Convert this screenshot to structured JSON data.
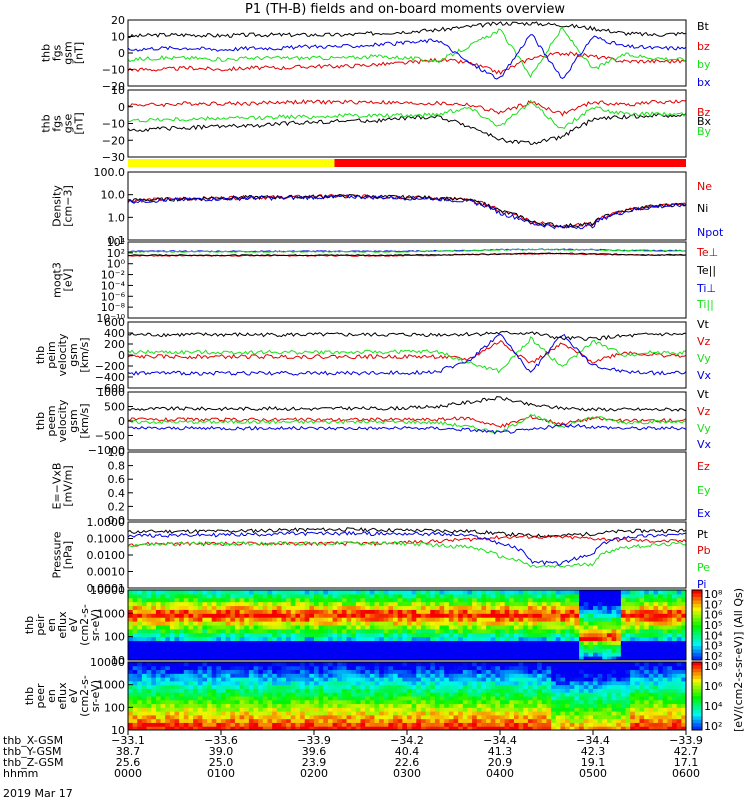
{
  "title": "P1 (TH-B) fields and on-board moments overview",
  "date_label": "2019 Mar 17",
  "colors": {
    "black": "#000000",
    "red": "#e00000",
    "green": "#19e019",
    "blue": "#0000e0"
  },
  "chart_data": [
    {
      "type": "line",
      "id": "fgs_gsm",
      "ylabel": [
        "thb",
        "fgs",
        "gsm",
        "[nT]"
      ],
      "ylim": [
        -20,
        20
      ],
      "yticks": [
        "20",
        "10",
        "0",
        "−10",
        "−20"
      ],
      "series": [
        {
          "name": "Bt",
          "color": "black",
          "values": [
            10,
            11,
            11,
            10.5,
            11,
            11,
            11,
            11,
            12,
            13,
            14,
            16,
            18,
            18,
            17,
            15,
            12,
            11,
            12
          ]
        },
        {
          "name": "bz",
          "color": "red",
          "values": [
            -10,
            -10,
            -9,
            -10,
            -9,
            -9,
            -8,
            -8,
            -7,
            -6,
            -4,
            -6,
            -12,
            -3,
            0,
            -2,
            -5,
            -5,
            -5
          ]
        },
        {
          "name": "by",
          "color": "green",
          "values": [
            -4,
            -3,
            -3,
            -4,
            -3,
            -3,
            -3,
            -3,
            -2,
            -3,
            -5,
            4,
            14,
            -14,
            15,
            -10,
            -1,
            -3,
            -4
          ]
        },
        {
          "name": "bx",
          "color": "blue",
          "values": [
            2,
            3,
            3,
            2,
            3,
            3,
            4,
            4,
            5,
            6,
            8,
            -6,
            -16,
            12,
            -16,
            10,
            4,
            3,
            3
          ]
        }
      ]
    },
    {
      "type": "line",
      "id": "fgs_gse",
      "ylabel": [
        "thb",
        "fgs",
        "gse",
        "[nT]"
      ],
      "ylim": [
        -35,
        15
      ],
      "yticks": [
        "10",
        "0",
        "−10",
        "−20",
        "−30"
      ],
      "series": [
        {
          "name": "Bz",
          "color": "red",
          "values": [
            4,
            4,
            5,
            5,
            5,
            6,
            6,
            6,
            6,
            5,
            5,
            4,
            -2,
            6,
            -3,
            6,
            4,
            6,
            6
          ]
        },
        {
          "name": "Bx",
          "color": "black",
          "values": [
            -15,
            -14,
            -13,
            -12,
            -12,
            -10,
            -9,
            -8,
            -8,
            -6,
            -5,
            -12,
            -22,
            -25,
            -20,
            -7,
            -5,
            -4,
            -4
          ]
        },
        {
          "name": "By",
          "color": "green",
          "values": [
            -8,
            -7,
            -7,
            -6,
            -6,
            -5,
            -5,
            -4,
            -4,
            -4,
            -3,
            2,
            -12,
            6,
            -14,
            2,
            -3,
            -3,
            -3
          ]
        }
      ]
    },
    {
      "type": "bar",
      "id": "mode_bar",
      "segments": [
        {
          "from": 0,
          "to": 0.37,
          "color": "yellow"
        },
        {
          "from": 0.37,
          "to": 1,
          "color": "red"
        }
      ]
    },
    {
      "type": "line",
      "id": "density",
      "scale": "log",
      "ylabel": [
        "Density",
        "[cm−3]"
      ],
      "ylim": [
        0.05,
        300
      ],
      "yticks": [
        "100.0",
        "10.0",
        "1.0",
        "0.1"
      ],
      "series": [
        {
          "name": "Ne",
          "color": "red",
          "values": [
            8,
            9,
            10,
            11,
            12,
            12,
            13,
            14,
            13,
            12,
            11,
            8,
            2,
            0.5,
            0.3,
            0.4,
            2,
            4,
            5
          ]
        },
        {
          "name": "Ni",
          "color": "black",
          "values": [
            8,
            9,
            10,
            11,
            12,
            12,
            13,
            14,
            13,
            12,
            11,
            8,
            2,
            0.5,
            0.3,
            0.4,
            2,
            4,
            5
          ]
        },
        {
          "name": "Npot",
          "color": "blue",
          "values": [
            7,
            8,
            9,
            10,
            11,
            11,
            12,
            13,
            12,
            11,
            10,
            7,
            1.5,
            0.4,
            0.25,
            0.3,
            1.8,
            3.5,
            4.5
          ]
        }
      ]
    },
    {
      "type": "line",
      "id": "temperature",
      "scale": "log",
      "ylabel": [
        "moqt3",
        "[eV]"
      ],
      "ylim": [
        1e-10,
        100000.0
      ],
      "yticks": [
        "10⁴",
        "10²",
        "10⁰",
        "10⁻²",
        "10⁻⁴",
        "10⁻⁶",
        "10⁻⁸",
        "10⁻¹⁰"
      ],
      "series": [
        {
          "name": "Te⊥",
          "color": "red",
          "values": [
            200,
            200,
            210,
            200,
            200,
            210,
            200,
            210,
            200,
            220,
            250,
            300,
            400,
            500,
            500,
            400,
            300,
            250,
            250
          ]
        },
        {
          "name": "Te||",
          "color": "black",
          "values": [
            250,
            260,
            260,
            250,
            250,
            260,
            260,
            260,
            250,
            270,
            300,
            350,
            450,
            550,
            550,
            450,
            350,
            300,
            300
          ]
        },
        {
          "name": "Ti⊥",
          "color": "blue",
          "values": [
            1500,
            1500,
            1500,
            1500,
            1500,
            1500,
            1500,
            1500,
            1500,
            1500,
            1800,
            2200,
            3000,
            3500,
            3500,
            3000,
            2200,
            2000,
            2000
          ]
        },
        {
          "name": "Ti||",
          "color": "green",
          "values": [
            1200,
            1200,
            1200,
            1200,
            1200,
            1200,
            1200,
            1200,
            1200,
            1300,
            1500,
            2000,
            2800,
            3200,
            3200,
            2800,
            2000,
            1800,
            1800
          ]
        }
      ]
    },
    {
      "type": "line",
      "id": "peim_velocity",
      "ylabel": [
        "thb",
        "peim",
        "velocity",
        "gsm",
        "[km/s]"
      ],
      "ylim": [
        -600,
        600
      ],
      "yticks": [
        "600",
        "400",
        "200",
        "0",
        "−200",
        "−400",
        "−600"
      ],
      "series": [
        {
          "name": "Vt",
          "color": "black",
          "values": [
            370,
            370,
            370,
            370,
            370,
            370,
            370,
            370,
            370,
            370,
            370,
            380,
            400,
            400,
            300,
            300,
            340,
            380,
            370
          ]
        },
        {
          "name": "Vz",
          "color": "red",
          "values": [
            -30,
            -30,
            -30,
            -30,
            -30,
            -30,
            -30,
            -30,
            -30,
            -30,
            -30,
            -80,
            250,
            -150,
            200,
            -120,
            50,
            0,
            -20
          ]
        },
        {
          "name": "Vy",
          "color": "green",
          "values": [
            50,
            50,
            50,
            50,
            50,
            50,
            50,
            50,
            50,
            60,
            60,
            -150,
            -300,
            300,
            -220,
            250,
            0,
            50,
            40
          ]
        },
        {
          "name": "Vx",
          "color": "blue",
          "values": [
            -330,
            -330,
            -330,
            -330,
            -330,
            -330,
            -330,
            -330,
            -330,
            -320,
            -300,
            -100,
            380,
            -330,
            380,
            -200,
            -300,
            -330,
            -320
          ]
        }
      ]
    },
    {
      "type": "line",
      "id": "peem_velocity",
      "ylabel": [
        "thb",
        "peem",
        "velocity",
        "gsm",
        "[km/s]"
      ],
      "ylim": [
        -1000,
        1000
      ],
      "yticks": [
        "1000",
        "500",
        "0",
        "−500",
        "−1000"
      ],
      "series": [
        {
          "name": "Vt",
          "color": "black",
          "values": [
            400,
            420,
            430,
            420,
            430,
            430,
            420,
            440,
            430,
            450,
            500,
            650,
            800,
            550,
            450,
            400,
            400,
            400,
            400
          ]
        },
        {
          "name": "Vz",
          "color": "red",
          "values": [
            50,
            40,
            50,
            40,
            50,
            50,
            40,
            50,
            50,
            50,
            50,
            100,
            -200,
            150,
            -100,
            100,
            0,
            20,
            30
          ]
        },
        {
          "name": "Vy",
          "color": "green",
          "values": [
            -30,
            -30,
            -30,
            -30,
            -30,
            -30,
            -30,
            -30,
            -30,
            -30,
            -50,
            -200,
            -400,
            200,
            -200,
            150,
            -50,
            -30,
            -30
          ]
        },
        {
          "name": "Vx",
          "color": "blue",
          "values": [
            -250,
            -250,
            -250,
            -250,
            -250,
            -250,
            -250,
            -250,
            -250,
            -250,
            -250,
            -300,
            -400,
            -300,
            -150,
            -200,
            -250,
            -250,
            -250
          ]
        }
      ]
    },
    {
      "type": "line",
      "id": "efield",
      "ylabel": [
        "E=−VxB",
        "[mV/m]"
      ],
      "ylim": [
        0,
        1
      ],
      "yticks": [
        "1.0",
        "0.8",
        "0.6",
        "0.4",
        "0.2",
        "0.0"
      ],
      "series": [
        {
          "name": "Ez",
          "color": "red",
          "values": []
        },
        {
          "name": "Ey",
          "color": "green",
          "values": []
        },
        {
          "name": "Ex",
          "color": "blue",
          "values": []
        }
      ]
    },
    {
      "type": "line",
      "id": "pressure",
      "scale": "log",
      "ylabel": [
        "Pressure",
        "[nPa]"
      ],
      "ylim": [
        0.0001,
        1
      ],
      "yticks": [
        "1.0000",
        "0.1000",
        "0.0100",
        "0.0010",
        "0.0001"
      ],
      "series": [
        {
          "name": "Pt",
          "color": "black",
          "values": [
            0.25,
            0.27,
            0.28,
            0.28,
            0.3,
            0.33,
            0.35,
            0.36,
            0.34,
            0.32,
            0.3,
            0.28,
            0.2,
            0.15,
            0.15,
            0.2,
            0.28,
            0.3,
            0.3
          ]
        },
        {
          "name": "Pb",
          "color": "red",
          "values": [
            0.045,
            0.05,
            0.05,
            0.05,
            0.05,
            0.05,
            0.05,
            0.05,
            0.05,
            0.06,
            0.07,
            0.09,
            0.12,
            0.13,
            0.12,
            0.1,
            0.08,
            0.07,
            0.07
          ]
        },
        {
          "name": "Pe",
          "color": "green",
          "values": [
            0.04,
            0.045,
            0.05,
            0.05,
            0.05,
            0.055,
            0.05,
            0.055,
            0.05,
            0.05,
            0.04,
            0.03,
            0.008,
            0.002,
            0.002,
            0.003,
            0.03,
            0.04,
            0.05
          ]
        },
        {
          "name": "Pi",
          "color": "blue",
          "values": [
            0.15,
            0.16,
            0.16,
            0.17,
            0.18,
            0.2,
            0.2,
            0.21,
            0.2,
            0.2,
            0.19,
            0.15,
            0.05,
            0.004,
            0.003,
            0.01,
            0.12,
            0.16,
            0.17
          ]
        }
      ]
    },
    {
      "type": "heatmap",
      "id": "peir_spectrogram",
      "ylabel": [
        "thb",
        "peir",
        "en",
        "eflux",
        "eV",
        "(cm2-s-",
        "sr-eV)"
      ],
      "ylim": [
        5,
        25000
      ],
      "yticks": [
        "10000",
        "1000",
        "100",
        "10"
      ],
      "cbar_ticks": [
        "10⁸",
        "10⁷",
        "10⁶",
        "10⁵",
        "10⁴",
        "10³",
        "10²"
      ]
    },
    {
      "type": "heatmap",
      "id": "peer_spectrogram",
      "ylabel": [
        "thb",
        "peer",
        "en",
        "eflux",
        "eV",
        "(cm2-s-",
        "sr-eV)"
      ],
      "ylim": [
        5,
        25000
      ],
      "yticks": [
        "10000",
        "1000",
        "100",
        "10"
      ],
      "cbar_ticks": [
        "10⁸",
        "10⁶",
        "10⁴",
        "10²"
      ]
    }
  ],
  "colorbar_label": "[eV/(cm2-s-sr-eV)] (All Qs)",
  "xaxis": {
    "row_labels": [
      "thb_X-GSM",
      "thb_Y-GSM",
      "thb_Z-GSM",
      "hhmm"
    ],
    "ticks": [
      {
        "x_gsm": "−33.1",
        "y_gsm": "38.7",
        "z_gsm": "25.6",
        "hhmm": "0000"
      },
      {
        "x_gsm": "−33.6",
        "y_gsm": "39.0",
        "z_gsm": "25.0",
        "hhmm": "0100"
      },
      {
        "x_gsm": "−33.9",
        "y_gsm": "39.6",
        "z_gsm": "23.9",
        "hhmm": "0200"
      },
      {
        "x_gsm": "−34.2",
        "y_gsm": "40.4",
        "z_gsm": "22.6",
        "hhmm": "0300"
      },
      {
        "x_gsm": "−34.4",
        "y_gsm": "41.3",
        "z_gsm": "20.9",
        "hhmm": "0400"
      },
      {
        "x_gsm": "−34.4",
        "y_gsm": "42.3",
        "z_gsm": "19.1",
        "hhmm": "0500"
      },
      {
        "x_gsm": "−33.9",
        "y_gsm": "42.7",
        "z_gsm": "17.1",
        "hhmm": "0600"
      }
    ]
  }
}
